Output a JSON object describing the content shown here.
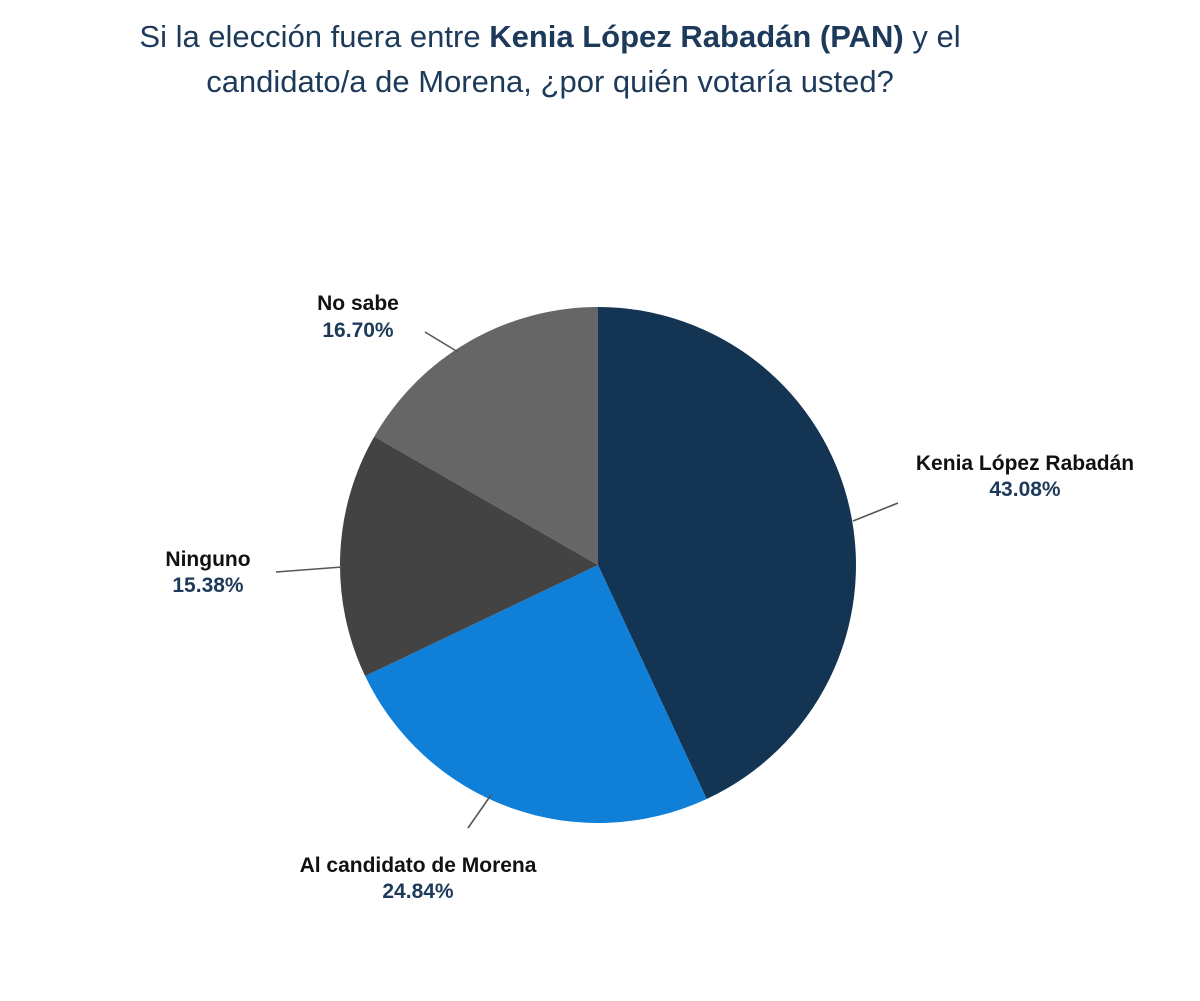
{
  "title": {
    "part1": "Si la elección fuera entre ",
    "bold": "Kenia López Rabadán (PAN)",
    "part2": " y el candidato/a de Morena, ¿por quién votaría usted?"
  },
  "chart_data": {
    "type": "pie",
    "title": "Si la elección fuera entre Kenia López Rabadán (PAN) y el candidato/a de Morena, ¿por quién votaría usted?",
    "start_angle": "12 o'clock",
    "direction": "clockwise",
    "slices": [
      {
        "label": "Kenia López Rabadán",
        "value": 43.08,
        "value_label": "43.08%",
        "color": "#133553"
      },
      {
        "label": "Al candidato de Morena",
        "value": 24.84,
        "value_label": "24.84%",
        "color": "#0f7fd8"
      },
      {
        "label": "Ninguno",
        "value": 15.38,
        "value_label": "15.38%",
        "color": "#434343"
      },
      {
        "label": "No sabe",
        "value": 16.7,
        "value_label": "16.70%",
        "color": "#666666"
      }
    ]
  }
}
